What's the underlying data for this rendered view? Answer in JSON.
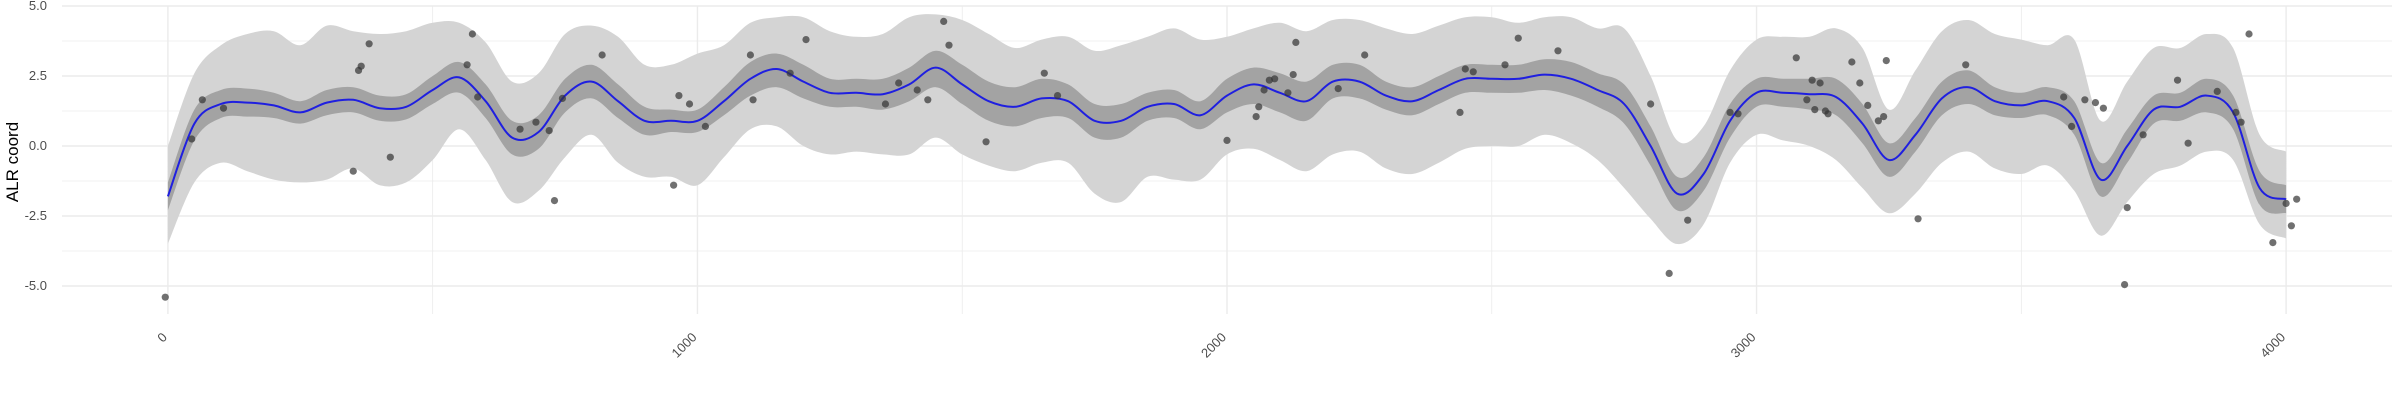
{
  "chart_data": {
    "type": "line",
    "title": "",
    "xlabel": "",
    "ylabel": "ALR coord",
    "xlim": [
      -200,
      4200
    ],
    "ylim": [
      -6,
      5
    ],
    "x_ticks": [
      {
        "value": 0,
        "label": "0"
      },
      {
        "value": 1000,
        "label": "1000"
      },
      {
        "value": 2000,
        "label": "2000"
      },
      {
        "value": 3000,
        "label": "3000"
      },
      {
        "value": 4000,
        "label": "4000"
      }
    ],
    "y_ticks": [
      {
        "value": -5,
        "label": "-5.0"
      },
      {
        "value": -2.5,
        "label": "-2.5"
      },
      {
        "value": 0,
        "label": "0.0"
      },
      {
        "value": 2.5,
        "label": "2.5"
      },
      {
        "value": 5,
        "label": "5.0"
      }
    ],
    "grid": true,
    "legend": "none",
    "colors": {
      "line": "#1f1fe0",
      "inner_band": "#a3a3a3",
      "outer_band": "#d4d4d4",
      "points": "#333333",
      "grid": "#ebebeb"
    },
    "trend": {
      "x": [
        0,
        50,
        100,
        150,
        200,
        250,
        300,
        350,
        400,
        450,
        500,
        550,
        600,
        650,
        700,
        750,
        800,
        850,
        900,
        950,
        1000,
        1050,
        1100,
        1150,
        1200,
        1250,
        1300,
        1350,
        1400,
        1450,
        1500,
        1550,
        1600,
        1650,
        1700,
        1750,
        1800,
        1850,
        1900,
        1950,
        2000,
        2050,
        2100,
        2150,
        2200,
        2250,
        2300,
        2350,
        2400,
        2450,
        2500,
        2550,
        2600,
        2650,
        2700,
        2750,
        2800,
        2850,
        2900,
        2950,
        3000,
        3050,
        3100,
        3150,
        3200,
        3250,
        3300,
        3350,
        3400,
        3450,
        3500,
        3550,
        3600,
        3650,
        3700,
        3750,
        3800,
        3850,
        3900,
        3950,
        4000
      ],
      "y": [
        -1.8,
        0.8,
        1.5,
        1.55,
        1.45,
        1.2,
        1.55,
        1.65,
        1.35,
        1.4,
        2.0,
        2.45,
        1.6,
        0.3,
        0.5,
        1.8,
        2.3,
        1.6,
        0.9,
        0.9,
        0.9,
        1.6,
        2.4,
        2.75,
        2.3,
        1.9,
        1.9,
        1.85,
        2.2,
        2.8,
        2.2,
        1.6,
        1.4,
        1.7,
        1.6,
        0.9,
        0.9,
        1.4,
        1.5,
        1.1,
        1.8,
        2.2,
        1.9,
        1.6,
        2.3,
        2.3,
        1.8,
        1.6,
        2.0,
        2.4,
        2.4,
        2.4,
        2.55,
        2.4,
        2.0,
        1.5,
        0.0,
        -1.7,
        -1.0,
        0.9,
        1.9,
        1.9,
        1.85,
        1.75,
        0.8,
        -0.5,
        0.4,
        1.7,
        2.1,
        1.6,
        1.45,
        1.6,
        1.0,
        -1.2,
        0.0,
        1.3,
        1.4,
        1.8,
        1.2,
        -1.5,
        -1.9
      ],
      "inner_lo": [
        -2.3,
        0.2,
        1.0,
        1.05,
        1.0,
        0.8,
        1.1,
        1.2,
        0.9,
        0.95,
        1.5,
        1.9,
        1.0,
        -0.3,
        -0.1,
        1.2,
        1.7,
        1.0,
        0.4,
        0.5,
        0.5,
        1.1,
        1.8,
        2.1,
        1.7,
        1.4,
        1.4,
        1.3,
        1.6,
        2.1,
        1.5,
        0.9,
        0.7,
        1.0,
        1.0,
        0.3,
        0.3,
        0.9,
        1.0,
        0.6,
        1.2,
        1.5,
        1.2,
        0.9,
        1.7,
        1.7,
        1.3,
        1.1,
        1.5,
        1.9,
        1.9,
        1.9,
        2.0,
        1.8,
        1.4,
        0.8,
        -0.7,
        -2.3,
        -1.6,
        0.3,
        1.4,
        1.4,
        1.3,
        1.1,
        0.1,
        -1.1,
        -0.2,
        1.1,
        1.5,
        1.1,
        1.0,
        1.1,
        0.4,
        -1.8,
        -0.6,
        0.8,
        0.9,
        1.2,
        0.6,
        -2.1,
        -2.4
      ],
      "inner_hi": [
        -1.3,
        1.3,
        2.0,
        2.05,
        1.9,
        1.6,
        2.0,
        2.1,
        1.8,
        1.85,
        2.5,
        3.0,
        2.2,
        0.9,
        1.1,
        2.4,
        2.9,
        2.2,
        1.4,
        1.3,
        1.3,
        2.1,
        3.0,
        3.3,
        2.9,
        2.4,
        2.4,
        2.4,
        2.8,
        3.4,
        2.9,
        2.3,
        2.1,
        2.4,
        2.2,
        1.5,
        1.5,
        1.9,
        2.0,
        1.6,
        2.4,
        2.8,
        2.6,
        2.3,
        2.9,
        2.9,
        2.3,
        2.1,
        2.5,
        2.9,
        2.9,
        2.9,
        3.1,
        3.0,
        2.6,
        2.2,
        0.7,
        -1.1,
        -0.4,
        1.5,
        2.4,
        2.4,
        2.4,
        2.4,
        1.5,
        0.1,
        1.0,
        2.3,
        2.7,
        2.1,
        1.9,
        2.1,
        1.6,
        -0.6,
        0.6,
        1.8,
        1.9,
        2.4,
        1.8,
        -0.9,
        -1.4
      ],
      "outer_lo": [
        -3.5,
        -1.3,
        -0.6,
        -0.9,
        -1.2,
        -1.3,
        -1.2,
        -0.8,
        -1.4,
        -1.3,
        -0.5,
        0.6,
        -0.5,
        -2.0,
        -1.6,
        -0.4,
        0.4,
        -0.6,
        -1.1,
        -1.1,
        -1.4,
        -0.4,
        0.6,
        0.7,
        0.0,
        -0.3,
        -0.2,
        -0.3,
        -0.3,
        0.3,
        -0.3,
        -0.7,
        -0.9,
        -0.6,
        -0.6,
        -1.7,
        -2.0,
        -1.1,
        -1.2,
        -1.2,
        -0.3,
        -0.1,
        -0.5,
        -0.9,
        -0.3,
        -0.2,
        -0.8,
        -1.0,
        -0.6,
        -0.1,
        0.0,
        0.0,
        0.4,
        0.1,
        -0.5,
        -1.5,
        -2.6,
        -3.5,
        -2.8,
        -0.6,
        0.4,
        0.2,
        0.0,
        -0.5,
        -1.5,
        -2.4,
        -1.7,
        -0.6,
        -0.2,
        -0.8,
        -1.0,
        -0.7,
        -1.6,
        -3.2,
        -2.0,
        -1.0,
        -0.7,
        -0.2,
        -0.5,
        -2.8,
        -3.3
      ],
      "outer_hi": [
        0.0,
        2.6,
        3.6,
        4.0,
        4.1,
        3.6,
        4.3,
        4.1,
        4.0,
        4.1,
        4.4,
        4.4,
        3.7,
        2.3,
        2.6,
        4.0,
        4.3,
        3.9,
        2.9,
        2.9,
        3.3,
        3.6,
        4.4,
        4.6,
        4.6,
        4.1,
        3.9,
        4.0,
        4.6,
        4.7,
        4.5,
        4.0,
        3.5,
        3.8,
        3.9,
        3.4,
        3.6,
        3.9,
        4.2,
        3.8,
        3.9,
        4.2,
        4.4,
        4.1,
        4.5,
        4.5,
        4.2,
        4.0,
        4.3,
        4.6,
        4.6,
        4.4,
        4.6,
        4.6,
        4.2,
        4.2,
        2.5,
        0.2,
        0.7,
        2.7,
        3.8,
        3.9,
        3.9,
        4.2,
        3.5,
        1.3,
        2.7,
        4.1,
        4.5,
        4.0,
        3.8,
        3.6,
        3.8,
        0.9,
        2.3,
        3.5,
        3.5,
        4.0,
        3.5,
        0.4,
        -0.2
      ]
    },
    "points": [
      [
        -5,
        -5.4
      ],
      [
        45,
        0.25
      ],
      [
        65,
        1.65
      ],
      [
        105,
        1.35
      ],
      [
        350,
        -0.9
      ],
      [
        360,
        2.7
      ],
      [
        365,
        2.85
      ],
      [
        380,
        3.65
      ],
      [
        420,
        -0.4
      ],
      [
        565,
        2.9
      ],
      [
        575,
        4.0
      ],
      [
        585,
        1.75
      ],
      [
        665,
        0.6
      ],
      [
        695,
        0.85
      ],
      [
        720,
        0.55
      ],
      [
        730,
        -1.95
      ],
      [
        745,
        1.7
      ],
      [
        820,
        3.25
      ],
      [
        955,
        -1.4
      ],
      [
        965,
        1.8
      ],
      [
        985,
        1.5
      ],
      [
        1015,
        0.7
      ],
      [
        1100,
        3.25
      ],
      [
        1105,
        1.65
      ],
      [
        1175,
        2.6
      ],
      [
        1205,
        3.8
      ],
      [
        1355,
        1.5
      ],
      [
        1380,
        2.25
      ],
      [
        1415,
        2.0
      ],
      [
        1435,
        1.65
      ],
      [
        1465,
        4.45
      ],
      [
        1475,
        3.6
      ],
      [
        1545,
        0.15
      ],
      [
        1655,
        2.6
      ],
      [
        1680,
        1.8
      ],
      [
        2000,
        0.2
      ],
      [
        2055,
        1.05
      ],
      [
        2060,
        1.4
      ],
      [
        2070,
        2.0
      ],
      [
        2080,
        2.35
      ],
      [
        2090,
        2.4
      ],
      [
        2115,
        1.9
      ],
      [
        2125,
        2.55
      ],
      [
        2130,
        3.7
      ],
      [
        2210,
        2.05
      ],
      [
        2260,
        3.25
      ],
      [
        2440,
        1.2
      ],
      [
        2450,
        2.75
      ],
      [
        2465,
        2.65
      ],
      [
        2525,
        2.9
      ],
      [
        2550,
        3.85
      ],
      [
        2625,
        3.4
      ],
      [
        2800,
        1.5
      ],
      [
        2835,
        -4.55
      ],
      [
        2870,
        -2.65
      ],
      [
        2950,
        1.2
      ],
      [
        2965,
        1.15
      ],
      [
        3075,
        3.15
      ],
      [
        3095,
        1.65
      ],
      [
        3105,
        2.35
      ],
      [
        3110,
        1.3
      ],
      [
        3120,
        2.25
      ],
      [
        3130,
        1.25
      ],
      [
        3135,
        1.15
      ],
      [
        3180,
        3.0
      ],
      [
        3195,
        2.25
      ],
      [
        3210,
        1.45
      ],
      [
        3230,
        0.9
      ],
      [
        3240,
        1.05
      ],
      [
        3245,
        3.05
      ],
      [
        3305,
        -2.6
      ],
      [
        3395,
        2.9
      ],
      [
        3580,
        1.75
      ],
      [
        3595,
        0.7
      ],
      [
        3620,
        1.65
      ],
      [
        3640,
        1.55
      ],
      [
        3655,
        1.35
      ],
      [
        3695,
        -4.95
      ],
      [
        3700,
        -2.2
      ],
      [
        3730,
        0.4
      ],
      [
        3795,
        2.35
      ],
      [
        3815,
        0.1
      ],
      [
        3870,
        1.95
      ],
      [
        3905,
        1.2
      ],
      [
        3915,
        0.85
      ],
      [
        3930,
        4.0
      ],
      [
        3975,
        -3.45
      ],
      [
        4000,
        -2.05
      ],
      [
        4010,
        -2.85
      ],
      [
        4020,
        -1.9
      ]
    ]
  }
}
